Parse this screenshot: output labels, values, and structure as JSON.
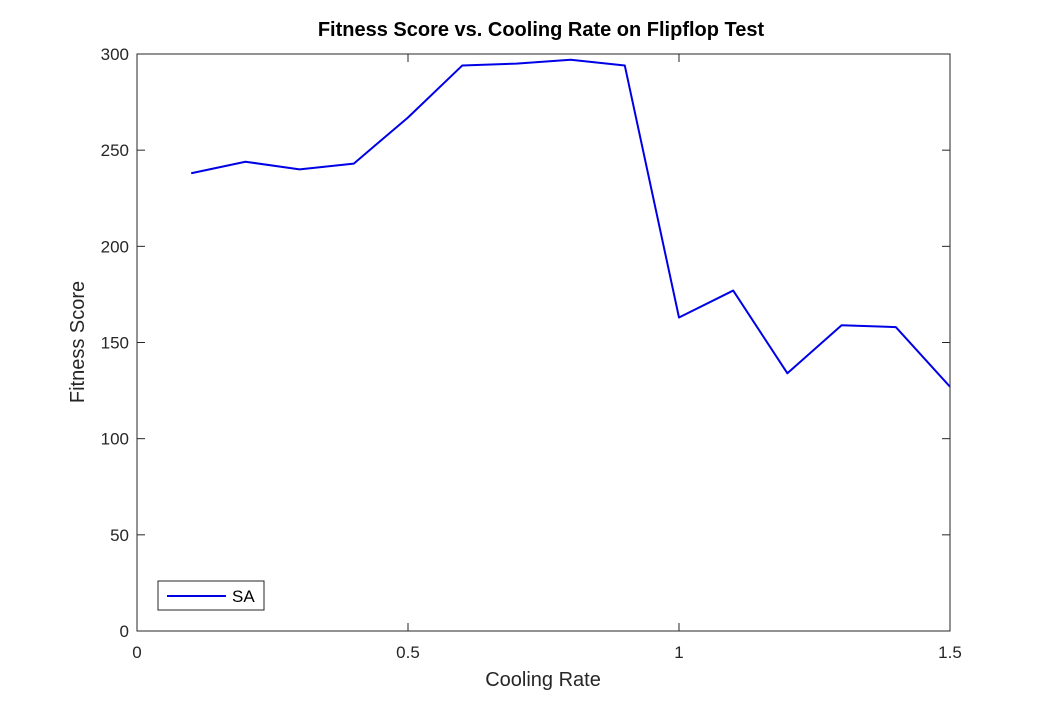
{
  "chart_data": {
    "type": "line",
    "title": "Fitness Score vs. Cooling Rate on Flipflop Test",
    "xlabel": "Cooling Rate",
    "ylabel": "Fitness Score",
    "xlim": [
      0,
      1.5
    ],
    "ylim": [
      0,
      300
    ],
    "xticks": [
      0,
      0.5,
      1,
      1.5
    ],
    "xtick_labels": [
      "0",
      "0.5",
      "1",
      "1.5"
    ],
    "yticks": [
      0,
      50,
      100,
      150,
      200,
      250,
      300
    ],
    "ytick_labels": [
      "0",
      "50",
      "100",
      "150",
      "200",
      "250",
      "300"
    ],
    "grid": false,
    "legend_position": "bottom-left",
    "series": [
      {
        "name": "SA",
        "color": "#0000e6",
        "x": [
          0.1,
          0.2,
          0.3,
          0.4,
          0.5,
          0.6,
          0.7,
          0.8,
          0.9,
          1.0,
          1.1,
          1.2,
          1.3,
          1.4,
          1.5
        ],
        "y": [
          238,
          244,
          240,
          243,
          267,
          294,
          295,
          297,
          294,
          163,
          177,
          134,
          159,
          158,
          127
        ]
      }
    ]
  }
}
